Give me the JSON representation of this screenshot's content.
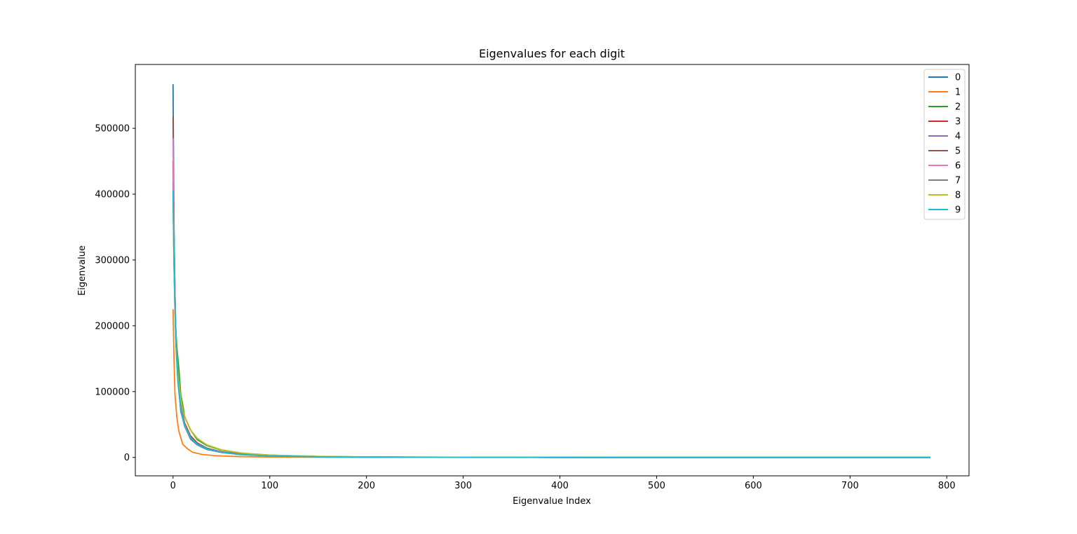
{
  "chart_data": {
    "type": "line",
    "title": "Eigenvalues for each digit",
    "xlabel": "Eigenvalue Index",
    "ylabel": "Eigenvalue",
    "xlim": [
      -39,
      823
    ],
    "ylim": [
      -28000,
      597000
    ],
    "xticks": [
      0,
      100,
      200,
      300,
      400,
      500,
      600,
      700,
      800
    ],
    "yticks": [
      0,
      100000,
      200000,
      300000,
      400000,
      500000
    ],
    "grid": false,
    "legend_position": "top-right",
    "x_max_index": 783,
    "series": [
      {
        "name": "0",
        "color": "#1f77b4",
        "lambda0": 567000,
        "points": [
          [
            0,
            567000
          ],
          [
            1,
            350000
          ],
          [
            2,
            250000
          ],
          [
            3,
            180000
          ],
          [
            5,
            120000
          ],
          [
            8,
            70000
          ],
          [
            12,
            48000
          ],
          [
            18,
            28000
          ],
          [
            25,
            19000
          ],
          [
            35,
            12000
          ],
          [
            50,
            7500
          ],
          [
            70,
            4200
          ],
          [
            100,
            2200
          ],
          [
            150,
            900
          ],
          [
            200,
            450
          ],
          [
            300,
            120
          ],
          [
            400,
            35
          ],
          [
            500,
            10
          ],
          [
            650,
            2
          ],
          [
            783,
            0
          ]
        ]
      },
      {
        "name": "1",
        "color": "#ff7f0e",
        "lambda0": 225000,
        "points": [
          [
            0,
            225000
          ],
          [
            1,
            150000
          ],
          [
            2,
            95000
          ],
          [
            4,
            60000
          ],
          [
            6,
            40000
          ],
          [
            10,
            20000
          ],
          [
            15,
            13000
          ],
          [
            20,
            8000
          ],
          [
            30,
            4500
          ],
          [
            45,
            2500
          ],
          [
            70,
            1200
          ],
          [
            100,
            600
          ],
          [
            150,
            250
          ],
          [
            200,
            110
          ],
          [
            300,
            30
          ],
          [
            400,
            8
          ],
          [
            500,
            2
          ],
          [
            783,
            0
          ]
        ]
      },
      {
        "name": "2",
        "color": "#2ca02c",
        "lambda0": 410000,
        "points": [
          [
            0,
            410000
          ],
          [
            1,
            300000
          ],
          [
            2,
            230000
          ],
          [
            3,
            190000
          ],
          [
            4,
            167000
          ],
          [
            6,
            135000
          ],
          [
            8,
            95000
          ],
          [
            10,
            80000
          ],
          [
            12,
            62000
          ],
          [
            18,
            42000
          ],
          [
            25,
            27000
          ],
          [
            35,
            18000
          ],
          [
            50,
            11000
          ],
          [
            70,
            6500
          ],
          [
            100,
            3400
          ],
          [
            150,
            1400
          ],
          [
            200,
            650
          ],
          [
            300,
            170
          ],
          [
            400,
            45
          ],
          [
            500,
            12
          ],
          [
            650,
            2
          ],
          [
            783,
            0
          ]
        ]
      },
      {
        "name": "3",
        "color": "#d62728",
        "lambda0": 450000,
        "points": [
          [
            0,
            450000
          ],
          [
            1,
            320000
          ],
          [
            2,
            240000
          ],
          [
            3,
            180000
          ],
          [
            5,
            125000
          ],
          [
            8,
            80000
          ],
          [
            12,
            52000
          ],
          [
            18,
            33000
          ],
          [
            25,
            22000
          ],
          [
            35,
            14000
          ],
          [
            50,
            8500
          ],
          [
            70,
            5000
          ],
          [
            100,
            2600
          ],
          [
            150,
            1100
          ],
          [
            200,
            520
          ],
          [
            300,
            140
          ],
          [
            400,
            40
          ],
          [
            500,
            10
          ],
          [
            650,
            2
          ],
          [
            783,
            0
          ]
        ]
      },
      {
        "name": "4",
        "color": "#9467bd",
        "lambda0": 420000,
        "points": [
          [
            0,
            420000
          ],
          [
            1,
            300000
          ],
          [
            2,
            225000
          ],
          [
            3,
            175000
          ],
          [
            5,
            120000
          ],
          [
            8,
            76000
          ],
          [
            12,
            50000
          ],
          [
            18,
            31000
          ],
          [
            25,
            21000
          ],
          [
            35,
            13500
          ],
          [
            50,
            8000
          ],
          [
            70,
            4700
          ],
          [
            100,
            2400
          ],
          [
            150,
            1000
          ],
          [
            200,
            480
          ],
          [
            300,
            130
          ],
          [
            400,
            36
          ],
          [
            500,
            9
          ],
          [
            650,
            2
          ],
          [
            783,
            0
          ]
        ]
      },
      {
        "name": "5",
        "color": "#8c564b",
        "lambda0": 518000,
        "points": [
          [
            0,
            518000
          ],
          [
            1,
            340000
          ],
          [
            2,
            250000
          ],
          [
            3,
            185000
          ],
          [
            5,
            125000
          ],
          [
            8,
            78000
          ],
          [
            12,
            50000
          ],
          [
            18,
            31000
          ],
          [
            25,
            21000
          ],
          [
            35,
            13500
          ],
          [
            50,
            8000
          ],
          [
            70,
            4700
          ],
          [
            100,
            2400
          ],
          [
            150,
            1000
          ],
          [
            200,
            480
          ],
          [
            300,
            130
          ],
          [
            400,
            36
          ],
          [
            500,
            9
          ],
          [
            650,
            2
          ],
          [
            783,
            0
          ]
        ]
      },
      {
        "name": "6",
        "color": "#e377c2",
        "lambda0": 485000,
        "points": [
          [
            0,
            485000
          ],
          [
            1,
            330000
          ],
          [
            2,
            245000
          ],
          [
            3,
            180000
          ],
          [
            5,
            122000
          ],
          [
            8,
            76000
          ],
          [
            12,
            49000
          ],
          [
            18,
            30000
          ],
          [
            25,
            20000
          ],
          [
            35,
            13000
          ],
          [
            50,
            7800
          ],
          [
            70,
            4500
          ],
          [
            100,
            2300
          ],
          [
            150,
            950
          ],
          [
            200,
            460
          ],
          [
            300,
            125
          ],
          [
            400,
            34
          ],
          [
            500,
            9
          ],
          [
            650,
            2
          ],
          [
            783,
            0
          ]
        ]
      },
      {
        "name": "7",
        "color": "#7f7f7f",
        "lambda0": 400000,
        "points": [
          [
            0,
            400000
          ],
          [
            1,
            290000
          ],
          [
            2,
            220000
          ],
          [
            3,
            170000
          ],
          [
            5,
            115000
          ],
          [
            8,
            72000
          ],
          [
            12,
            47000
          ],
          [
            18,
            29000
          ],
          [
            25,
            19500
          ],
          [
            35,
            12500
          ],
          [
            50,
            7500
          ],
          [
            70,
            4300
          ],
          [
            100,
            2200
          ],
          [
            150,
            900
          ],
          [
            200,
            440
          ],
          [
            300,
            120
          ],
          [
            400,
            33
          ],
          [
            500,
            8
          ],
          [
            650,
            2
          ],
          [
            783,
            0
          ]
        ]
      },
      {
        "name": "8",
        "color": "#bcbd22",
        "lambda0": 390000,
        "points": [
          [
            0,
            390000
          ],
          [
            1,
            290000
          ],
          [
            2,
            225000
          ],
          [
            3,
            180000
          ],
          [
            5,
            130000
          ],
          [
            8,
            90000
          ],
          [
            10,
            72000
          ],
          [
            13,
            58000
          ],
          [
            18,
            42000
          ],
          [
            25,
            29000
          ],
          [
            35,
            19000
          ],
          [
            50,
            11500
          ],
          [
            70,
            6800
          ],
          [
            100,
            3500
          ],
          [
            150,
            1500
          ],
          [
            200,
            700
          ],
          [
            300,
            180
          ],
          [
            400,
            48
          ],
          [
            500,
            12
          ],
          [
            650,
            2
          ],
          [
            783,
            0
          ]
        ]
      },
      {
        "name": "9",
        "color": "#17becf",
        "lambda0": 405000,
        "points": [
          [
            0,
            405000
          ],
          [
            1,
            300000
          ],
          [
            2,
            230000
          ],
          [
            3,
            175000
          ],
          [
            5,
            118000
          ],
          [
            8,
            74000
          ],
          [
            12,
            48000
          ],
          [
            18,
            30000
          ],
          [
            25,
            20000
          ],
          [
            35,
            13000
          ],
          [
            50,
            7700
          ],
          [
            70,
            4500
          ],
          [
            100,
            2300
          ],
          [
            150,
            950
          ],
          [
            200,
            460
          ],
          [
            300,
            125
          ],
          [
            400,
            34
          ],
          [
            500,
            9
          ],
          [
            650,
            2
          ],
          [
            783,
            0
          ]
        ]
      }
    ]
  }
}
